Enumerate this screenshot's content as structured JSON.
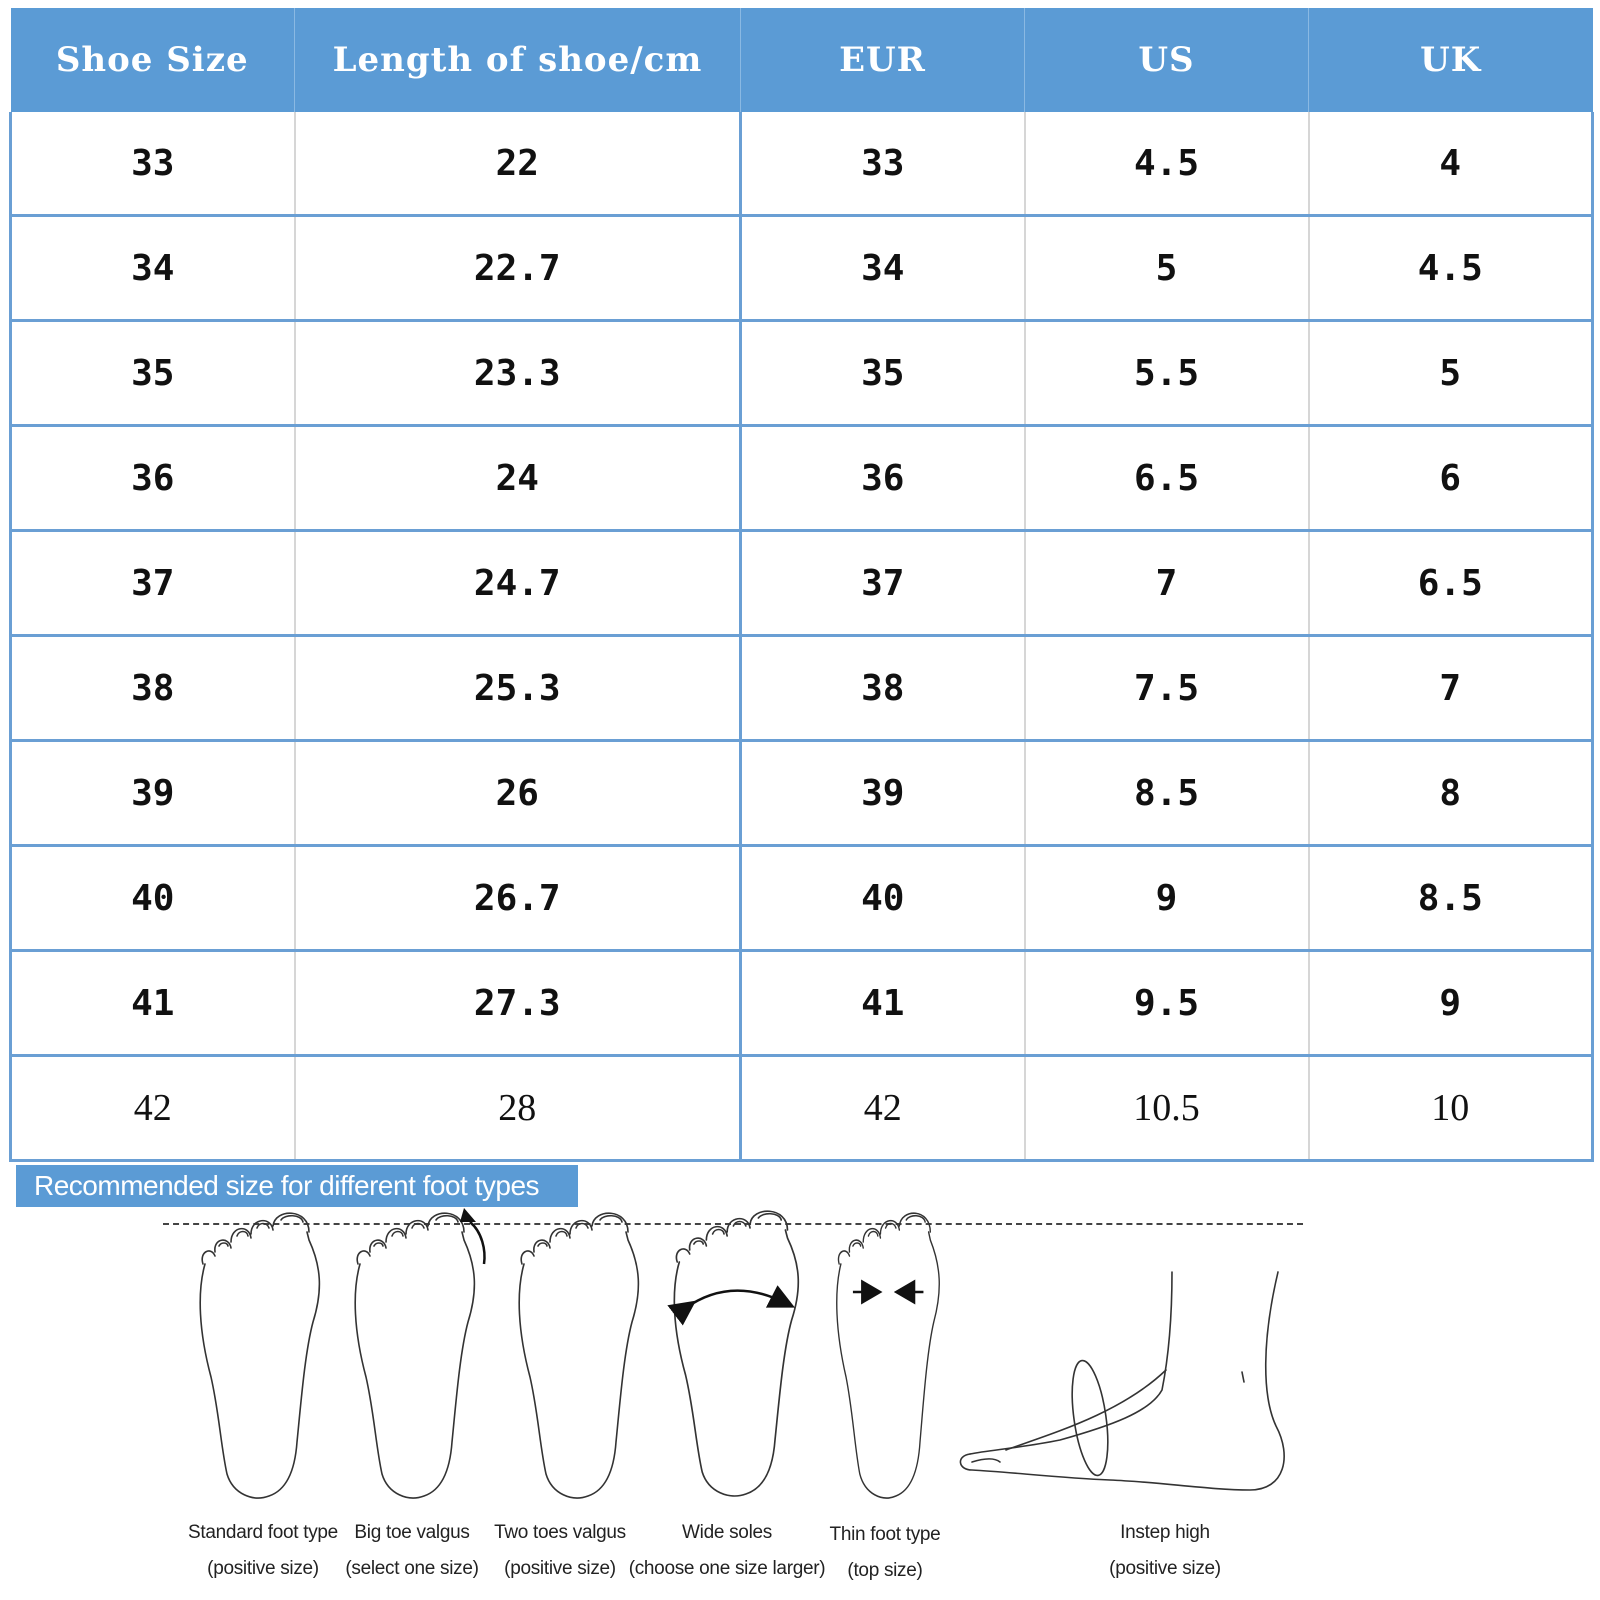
{
  "size_table": {
    "headers": [
      "Shoe Size",
      "Length of shoe/cm",
      "EUR",
      "US",
      "UK"
    ],
    "rows": [
      [
        "33",
        "22",
        "33",
        "4.5",
        "4"
      ],
      [
        "34",
        "22.7",
        "34",
        "5",
        "4.5"
      ],
      [
        "35",
        "23.3",
        "35",
        "5.5",
        "5"
      ],
      [
        "36",
        "24",
        "36",
        "6.5",
        "6"
      ],
      [
        "37",
        "24.7",
        "37",
        "7",
        "6.5"
      ],
      [
        "38",
        "25.3",
        "38",
        "7.5",
        "7"
      ],
      [
        "39",
        "26",
        "39",
        "8.5",
        "8"
      ],
      [
        "40",
        "26.7",
        "40",
        "9",
        "8.5"
      ],
      [
        "41",
        "27.3",
        "41",
        "9.5",
        "9"
      ],
      [
        "42",
        "28",
        "42",
        "10.5",
        "10"
      ]
    ]
  },
  "recommendation": {
    "title": "Recommended size for different foot types",
    "foot_types": [
      {
        "name": "Standard foot type",
        "advice": "(positive size)",
        "icon": "foot-outline-icon"
      },
      {
        "name": "Big toe valgus",
        "advice": "(select one size)",
        "icon": "foot-big-toe-valgus-icon"
      },
      {
        "name": "Two toes valgus",
        "advice": "(positive size)",
        "icon": "foot-two-toes-valgus-icon"
      },
      {
        "name": "Wide soles",
        "advice": "(choose one size larger)",
        "icon": "foot-wide-soles-icon"
      },
      {
        "name": "Thin foot type",
        "advice": "(top size)",
        "icon": "foot-thin-icon"
      },
      {
        "name": "Instep high",
        "advice": "(positive size)",
        "icon": "foot-side-instep-icon"
      }
    ]
  },
  "colors": {
    "header_bg": "#5b9bd5",
    "grid_line": "#6a9fd4",
    "text": "#111111"
  }
}
